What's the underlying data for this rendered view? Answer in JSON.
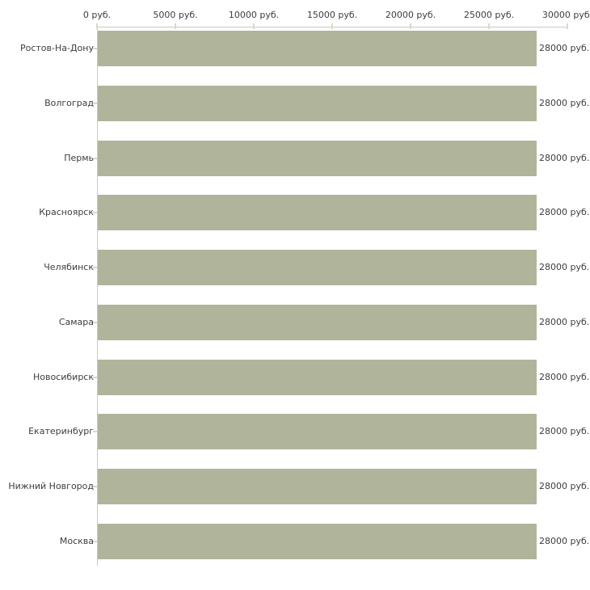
{
  "chart_data": {
    "type": "bar",
    "orientation": "horizontal",
    "categories": [
      "Ростов-На-Дону",
      "Волгоград",
      "Пермь",
      "Красноярск",
      "Челябинск",
      "Самара",
      "Новосибирск",
      "Екатеринбург",
      "Нижний Новгород",
      "Москва"
    ],
    "values": [
      28000,
      28000,
      28000,
      28000,
      28000,
      28000,
      28000,
      28000,
      28000,
      28000
    ],
    "bar_labels": [
      "28000 руб.",
      "28000 руб.",
      "28000 руб.",
      "28000 руб.",
      "28000 руб.",
      "28000 руб.",
      "28000 руб.",
      "28000 руб.",
      "28000 руб.",
      "28000 руб."
    ],
    "x_tick_labels": [
      "0 руб.",
      "5000 руб.",
      "10000 руб.",
      "15000 руб.",
      "20000 руб.",
      "25000 руб.",
      "30000 руб."
    ],
    "x_tick_values": [
      0,
      5000,
      10000,
      15000,
      20000,
      25000,
      30000
    ],
    "xlim": [
      0,
      30000
    ],
    "unit": "руб.",
    "bar_color": "#b0b49b",
    "axis_color": "#c9c9c9",
    "tick_color": "#d9dbc3",
    "grid": "off",
    "legend": "none",
    "xlabel": "",
    "ylabel": ""
  }
}
